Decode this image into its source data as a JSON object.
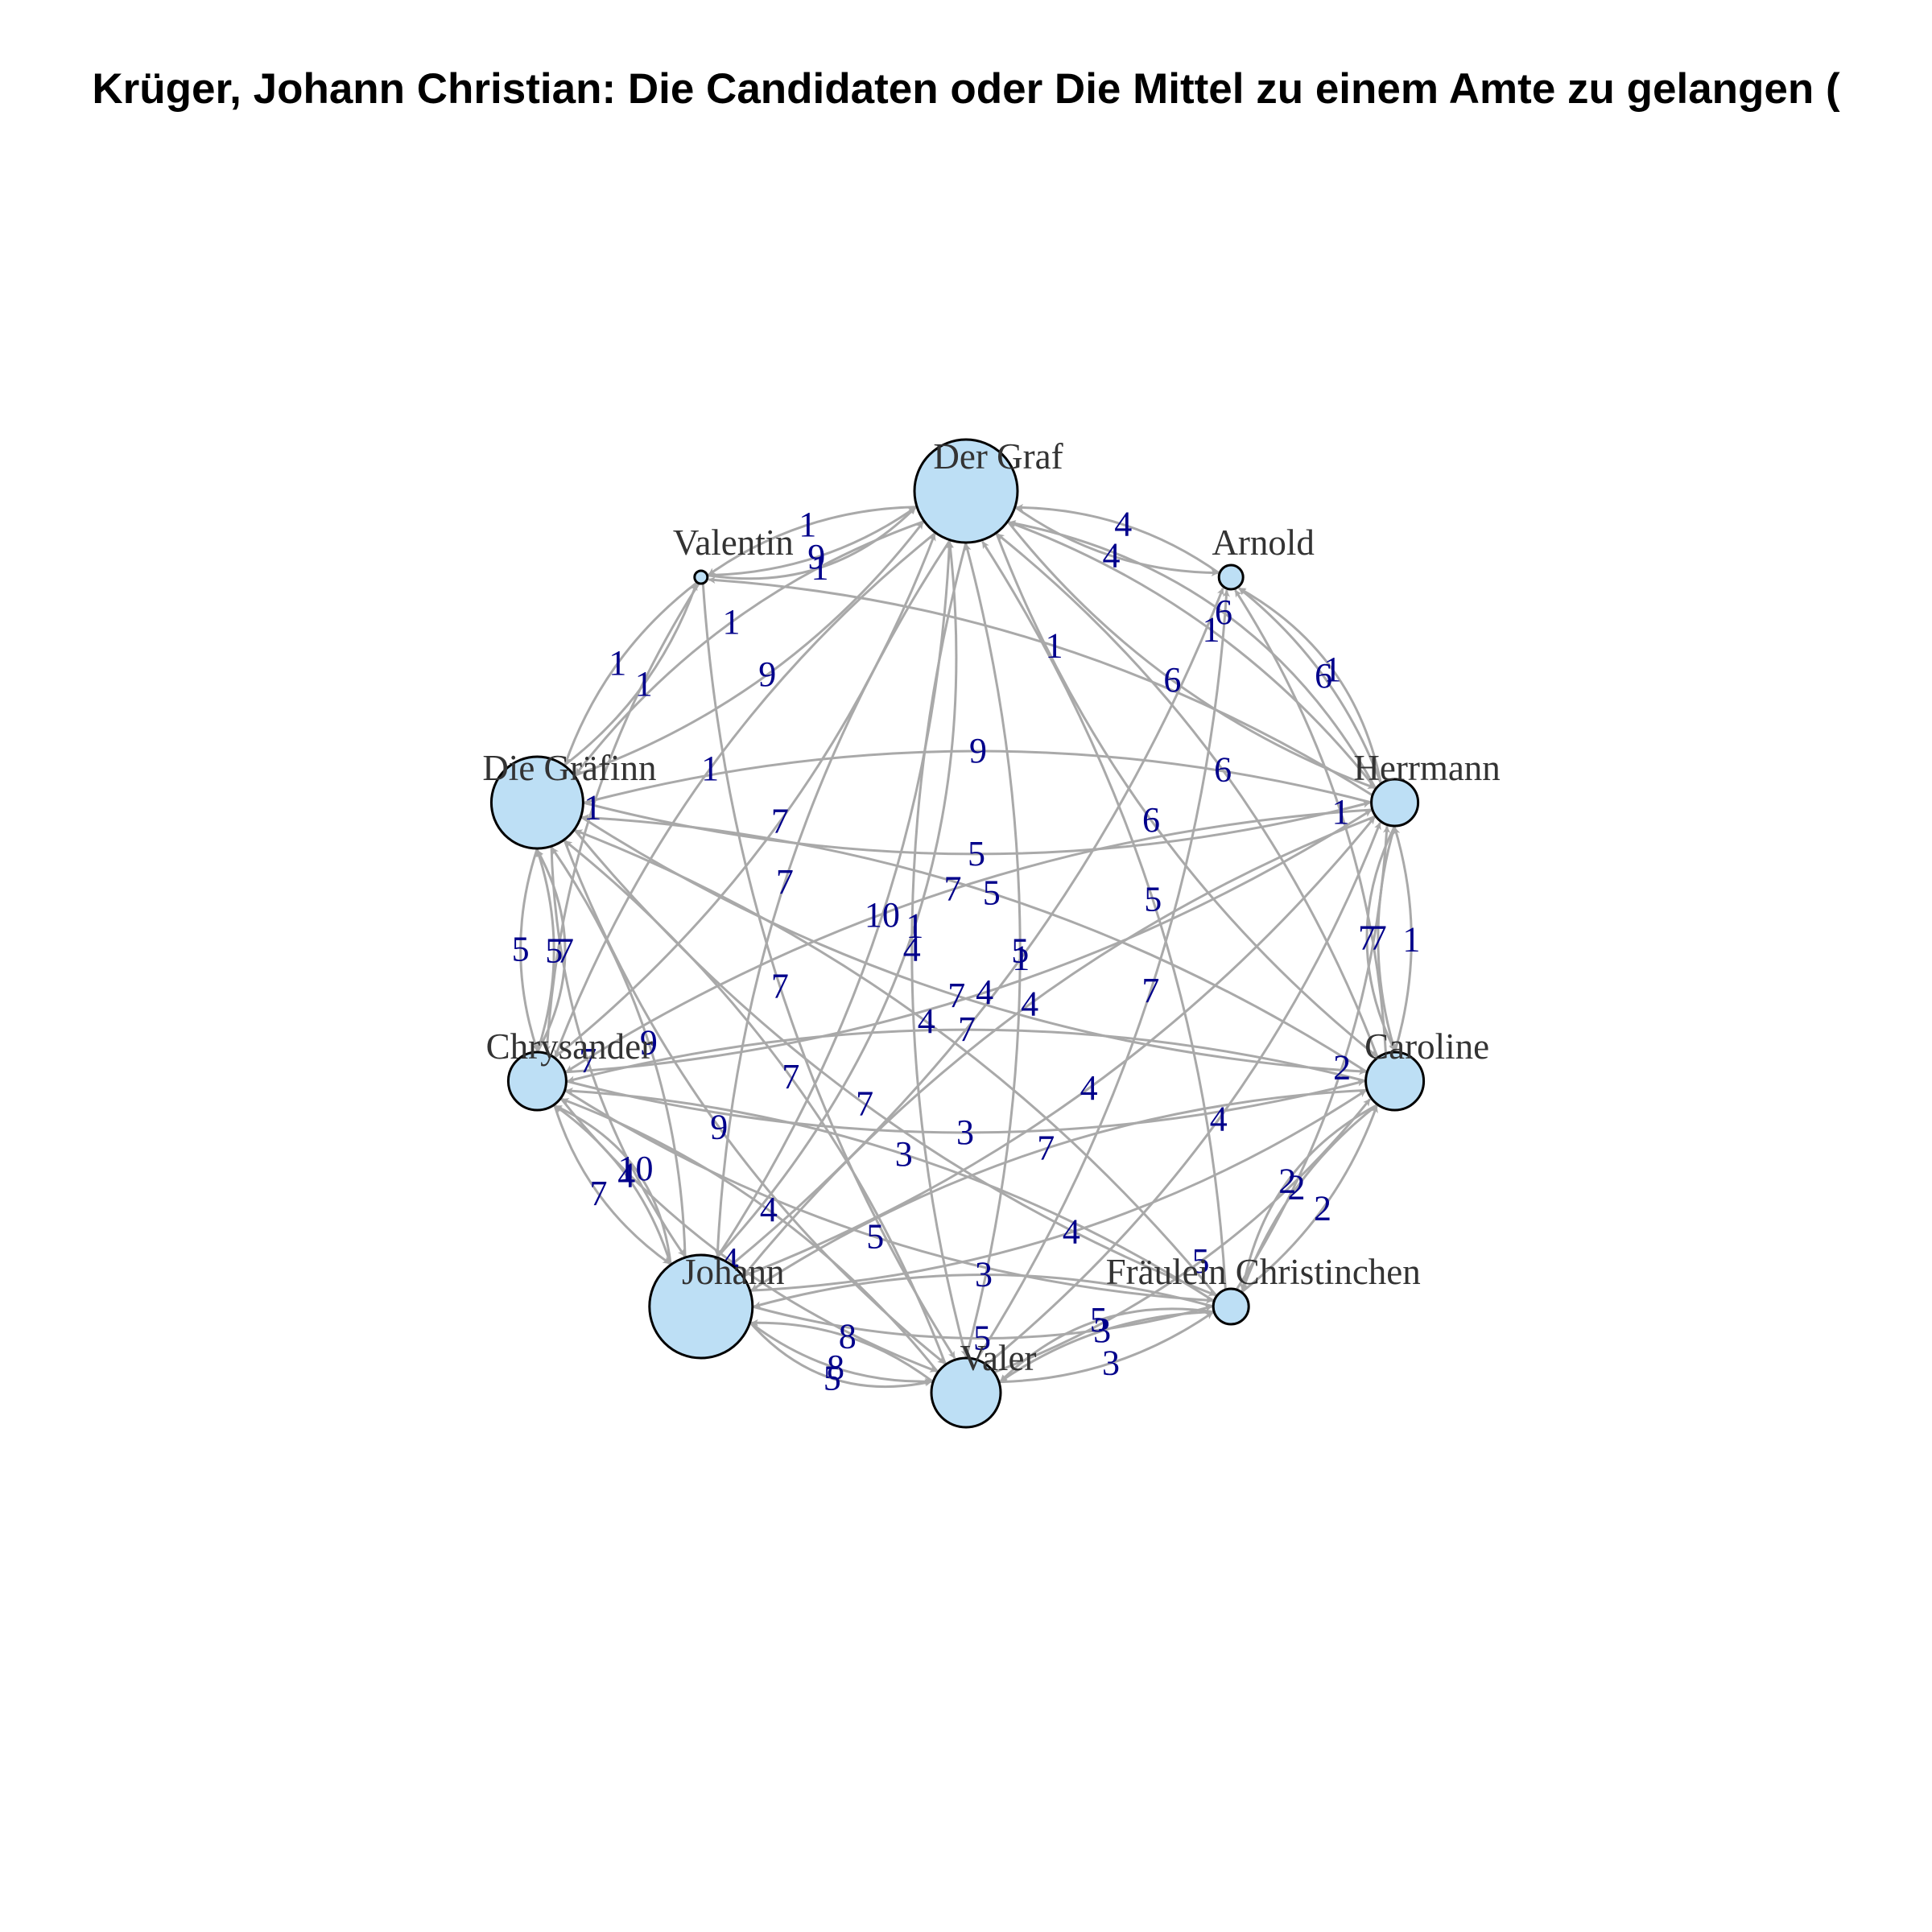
{
  "title": "Krüger, Johann Christian: Die Candidaten oder Die Mittel zu einem Amte zu gelangen (",
  "colors": {
    "node_fill": "#bddff5",
    "node_stroke": "#000000",
    "edge": "#a9a9a9",
    "edge_label": "#00008b",
    "node_label": "#333333"
  },
  "nodes": [
    {
      "id": "graf",
      "label": "Der Graf",
      "weight": 8
    },
    {
      "id": "arnold",
      "label": "Arnold",
      "weight": 1
    },
    {
      "id": "herrmann",
      "label": "Herrmann",
      "weight": 3
    },
    {
      "id": "caroline",
      "label": "Caroline",
      "weight": 4
    },
    {
      "id": "christ",
      "label": "Fräulein Christinchen",
      "weight": 2
    },
    {
      "id": "valer",
      "label": "Valer",
      "weight": 5
    },
    {
      "id": "johann",
      "label": "Johann",
      "weight": 8
    },
    {
      "id": "chrysander",
      "label": "Chrysander",
      "weight": 4
    },
    {
      "id": "graefinn",
      "label": "Die Gräfinn",
      "weight": 7
    },
    {
      "id": "valentin",
      "label": "Valentin",
      "weight": 0
    }
  ],
  "edges": [
    {
      "from": "graf",
      "to": "arnold",
      "label": "4"
    },
    {
      "from": "arnold",
      "to": "graf",
      "label": "4"
    },
    {
      "from": "herrmann",
      "to": "graf",
      "label": "1"
    },
    {
      "from": "herrmann",
      "to": "graf",
      "label": "6"
    },
    {
      "from": "caroline",
      "to": "graf",
      "label": "6"
    },
    {
      "from": "christ",
      "to": "graf",
      "label": "5"
    },
    {
      "from": "valer",
      "to": "graf",
      "label": "5"
    },
    {
      "from": "johann",
      "to": "graf",
      "label": "10"
    },
    {
      "from": "johann",
      "to": "graf",
      "label": "1"
    },
    {
      "from": "chrysander",
      "to": "graf",
      "label": "7"
    },
    {
      "from": "graefinn",
      "to": "graf",
      "label": "9"
    },
    {
      "from": "valentin",
      "to": "graf",
      "label": "9"
    },
    {
      "from": "valentin",
      "to": "graf",
      "label": "1"
    },
    {
      "from": "graf",
      "to": "valentin",
      "label": "1"
    },
    {
      "from": "herrmann",
      "to": "valentin",
      "label": "1"
    },
    {
      "from": "herrmann",
      "to": "arnold",
      "label": "6"
    },
    {
      "from": "herrmann",
      "to": "arnold",
      "label": "1"
    },
    {
      "from": "caroline",
      "to": "arnold",
      "label": "1"
    },
    {
      "from": "valer",
      "to": "arnold",
      "label": "7"
    },
    {
      "from": "johann",
      "to": "arnold",
      "label": "1"
    },
    {
      "from": "graefinn",
      "to": "herrmann",
      "label": "5"
    },
    {
      "from": "chrysander",
      "to": "herrmann",
      "label": "4"
    },
    {
      "from": "johann",
      "to": "herrmann",
      "label": "4"
    },
    {
      "from": "valer",
      "to": "herrmann",
      "label": "4"
    },
    {
      "from": "christ",
      "to": "herrmann",
      "label": "2"
    },
    {
      "from": "caroline",
      "to": "herrmann",
      "label": "1"
    },
    {
      "from": "herrmann",
      "to": "caroline",
      "label": "7"
    },
    {
      "from": "herrmann",
      "to": "caroline",
      "label": "7"
    },
    {
      "from": "graf",
      "to": "caroline",
      "label": "6"
    },
    {
      "from": "graefinn",
      "to": "caroline",
      "label": "7"
    },
    {
      "from": "chrysander",
      "to": "caroline",
      "label": "3"
    },
    {
      "from": "johann",
      "to": "caroline",
      "label": "4"
    },
    {
      "from": "valer",
      "to": "caroline",
      "label": "5"
    },
    {
      "from": "christ",
      "to": "caroline",
      "label": "2"
    },
    {
      "from": "caroline",
      "to": "christ",
      "label": "2"
    },
    {
      "from": "caroline",
      "to": "christ",
      "label": "2"
    },
    {
      "from": "graefinn",
      "to": "christ",
      "label": "7"
    },
    {
      "from": "chrysander",
      "to": "christ",
      "label": "5"
    },
    {
      "from": "johann",
      "to": "christ",
      "label": "5"
    },
    {
      "from": "valer",
      "to": "christ",
      "label": "3"
    },
    {
      "from": "christ",
      "to": "valer",
      "label": "3"
    },
    {
      "from": "christ",
      "to": "valer",
      "label": "5"
    },
    {
      "from": "johann",
      "to": "valer",
      "label": "8"
    },
    {
      "from": "johann",
      "to": "valer",
      "label": "5"
    },
    {
      "from": "valer",
      "to": "johann",
      "label": "8"
    },
    {
      "from": "graf",
      "to": "valer",
      "label": "4"
    },
    {
      "from": "chrysander",
      "to": "valer",
      "label": "4"
    },
    {
      "from": "graefinn",
      "to": "valer",
      "label": "9"
    },
    {
      "from": "valentin",
      "to": "valer",
      "label": "7"
    },
    {
      "from": "graf",
      "to": "johann",
      "label": "7"
    },
    {
      "from": "herrmann",
      "to": "johann",
      "label": "4"
    },
    {
      "from": "caroline",
      "to": "johann",
      "label": "7"
    },
    {
      "from": "christ",
      "to": "johann",
      "label": "3"
    },
    {
      "from": "graefinn",
      "to": "johann",
      "label": "7"
    },
    {
      "from": "chrysander",
      "to": "johann",
      "label": "7"
    },
    {
      "from": "johann",
      "to": "chrysander",
      "label": "4"
    },
    {
      "from": "valer",
      "to": "chrysander",
      "label": "4"
    },
    {
      "from": "christ",
      "to": "chrysander",
      "label": "3"
    },
    {
      "from": "caroline",
      "to": "chrysander",
      "label": "7"
    },
    {
      "from": "herrmann",
      "to": "chrysander",
      "label": "7"
    },
    {
      "from": "graf",
      "to": "chrysander",
      "label": "1"
    },
    {
      "from": "graefinn",
      "to": "chrysander",
      "label": "5"
    },
    {
      "from": "chrysander",
      "to": "graefinn",
      "label": "5"
    },
    {
      "from": "chrysander",
      "to": "graefinn",
      "label": "7"
    },
    {
      "from": "johann",
      "to": "graefinn",
      "label": "9"
    },
    {
      "from": "valer",
      "to": "graefinn",
      "label": "7"
    },
    {
      "from": "christ",
      "to": "graefinn",
      "label": "4"
    },
    {
      "from": "caroline",
      "to": "graefinn",
      "label": "5"
    },
    {
      "from": "herrmann",
      "to": "graefinn",
      "label": "9"
    },
    {
      "from": "graf",
      "to": "graefinn",
      "label": "1"
    },
    {
      "from": "valentin",
      "to": "graefinn",
      "label": "1"
    },
    {
      "from": "graefinn",
      "to": "valentin",
      "label": "1"
    },
    {
      "from": "valentin",
      "to": "chrysander",
      "label": "1"
    },
    {
      "from": "graf",
      "to": "herrmann",
      "label": "6"
    },
    {
      "from": "johann",
      "to": "chrysander",
      "label": "10"
    }
  ]
}
